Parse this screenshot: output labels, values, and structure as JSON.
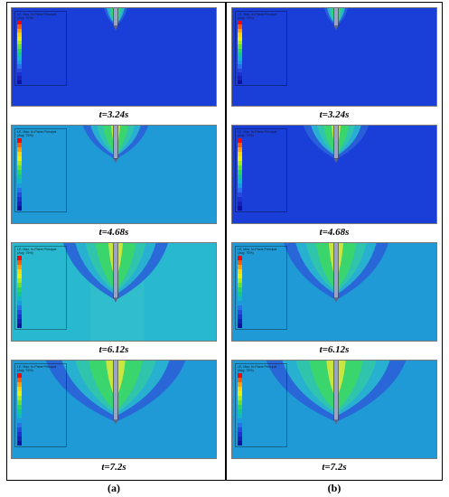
{
  "figure": {
    "columns": [
      {
        "label": "(a)",
        "panels": [
          {
            "time": "t=3.24s",
            "legend_title": "LE, Max. In-Plane Principal\n(Avg: 75%)"
          },
          {
            "time": "t=4.68s",
            "legend_title": "LE, Max. In-Plane Principal\n(Avg: 75%)"
          },
          {
            "time": "t=6.12s",
            "legend_title": "LE, Max. In-Plane Principal\n(Avg: 75%)"
          },
          {
            "time": "t=7.2s",
            "legend_title": "LE, Max. In-Plane Principal\n(Avg: 75%)"
          }
        ]
      },
      {
        "label": "(b)",
        "panels": [
          {
            "time": "t=3.24s",
            "legend_title": "LE, Max. In-Plane Principal\n(Avg: 75%)"
          },
          {
            "time": "t=4.68s",
            "legend_title": "LE, Max. In-Plane Principal\n(Avg: 75%)"
          },
          {
            "time": "t=6.12s",
            "legend_title": "LE, Max. In-Plane Principal\n(Avg: 75%)"
          },
          {
            "time": "t=7.2s",
            "legend_title": "LE, Max. In-Plane Principal\n(Avg: 75%)"
          }
        ]
      }
    ],
    "colors": {
      "background_dark": "#1a3ed8",
      "background_mid": "#1f9ad6",
      "background_light": "#28b8d0",
      "contour_green": "#3cd66a",
      "contour_yellow": "#d8e83a",
      "frame": "#000000"
    },
    "colormap": [
      "#ff0000",
      "#ff5a00",
      "#ffa000",
      "#ffd400",
      "#e8f000",
      "#a8e81c",
      "#66de34",
      "#2cd45a",
      "#14c88c",
      "#10b8c0",
      "#1a9ce0",
      "#2a70e8",
      "#2a48e0",
      "#2030d0",
      "#1820b8",
      "#10109a"
    ]
  }
}
